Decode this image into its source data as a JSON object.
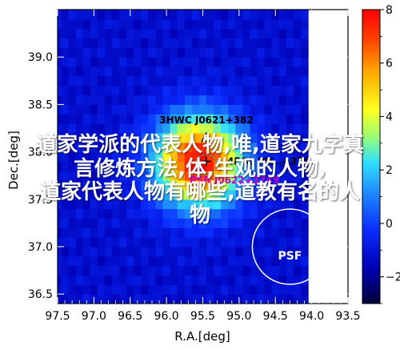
{
  "chart_data": {
    "type": "heatmap",
    "xlabel": "R.A.[deg]",
    "ylabel": "Dec.[deg]",
    "xlim": [
      97.5,
      93.5
    ],
    "ylim": [
      36.4,
      39.5
    ],
    "x_ticks": [
      "97.5",
      "97.0",
      "96.5",
      "96.0",
      "95.5",
      "95.0",
      "94.5",
      "94.0",
      "93.5"
    ],
    "y_ticks": [
      "36.5",
      "37.0",
      "37.5",
      "38.0",
      "38.5",
      "39.0"
    ],
    "colorbar": {
      "min": -3,
      "max": 8,
      "ticks": [
        "-2",
        "0",
        "2",
        "4",
        "6",
        "8"
      ]
    },
    "peak": {
      "ra": 95.55,
      "dec": 37.9,
      "value": 8.0
    },
    "sources": [
      {
        "name": "3HWC J0621+382",
        "ra": 95.45,
        "dec": 38.15,
        "marker": "triangle",
        "color": "#000000"
      },
      {
        "name": "4FGL J06..+374..",
        "ra": 95.45,
        "dec": 37.9,
        "marker": "cross",
        "color": "#000000"
      },
      {
        "name": "PSR J0622+3749",
        "ra": 95.55,
        "dec": 37.82,
        "marker": "circle",
        "color": "#cc00cc"
      }
    ],
    "psf": {
      "label": "PSF",
      "ra": 94.3,
      "dec": 37.0
    }
  },
  "watermark": [
    "道家学派的代表人物,唯,道家九字真",
    "言修炼方法,体,生观的人物,",
    "道家代表人物有哪些,道教有名的人",
    "物"
  ]
}
